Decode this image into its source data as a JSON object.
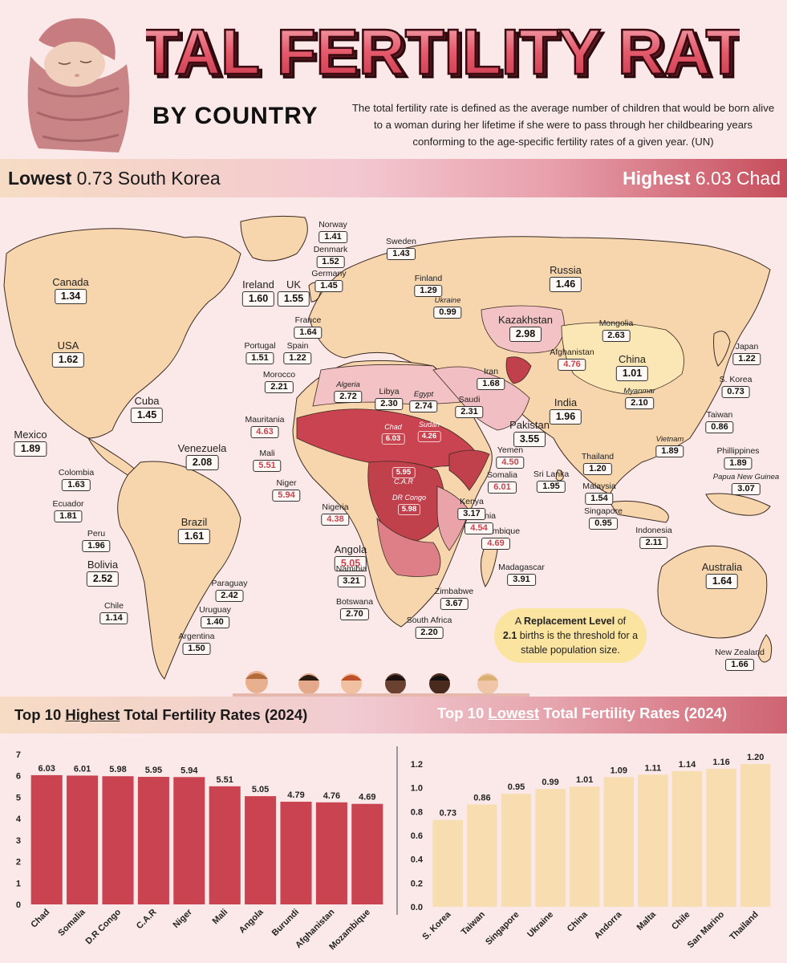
{
  "title": "TOTAL FERTILITY RATES",
  "subtitle": "BY COUNTRY",
  "definition": "The total fertility rate is defined as the average number of children that would be born alive to a woman during her lifetime if she were to pass through her childbearing years conforming to the age-specific fertility rates of a given year. (UN)",
  "lowest": {
    "label": "Lowest",
    "value": "0.73",
    "country": "South Korea"
  },
  "highest": {
    "label": "Highest",
    "value": "6.03",
    "country": "Chad"
  },
  "map_labels": [
    {
      "name": "Canada",
      "value": "1.34"
    },
    {
      "name": "USA",
      "value": "1.62"
    },
    {
      "name": "Mexico",
      "value": "1.89"
    },
    {
      "name": "Cuba",
      "value": "1.45"
    },
    {
      "name": "Venezuela",
      "value": "2.08"
    },
    {
      "name": "Colombia",
      "value": "1.63"
    },
    {
      "name": "Ecuador",
      "value": "1.81"
    },
    {
      "name": "Peru",
      "value": "1.96"
    },
    {
      "name": "Bolivia",
      "value": "2.52"
    },
    {
      "name": "Brazil",
      "value": "1.61"
    },
    {
      "name": "Paraguay",
      "value": "2.42"
    },
    {
      "name": "Uruguay",
      "value": "1.40"
    },
    {
      "name": "Chile",
      "value": "1.14"
    },
    {
      "name": "Argentina",
      "value": "1.50"
    },
    {
      "name": "Norway",
      "value": "1.41"
    },
    {
      "name": "Denmark",
      "value": "1.52"
    },
    {
      "name": "Sweden",
      "value": "1.43"
    },
    {
      "name": "Germany",
      "value": "1.45"
    },
    {
      "name": "Ireland",
      "value": "1.60"
    },
    {
      "name": "UK",
      "value": "1.55"
    },
    {
      "name": "Finland",
      "value": "1.29"
    },
    {
      "name": "Ukraine",
      "value": "0.99"
    },
    {
      "name": "France",
      "value": "1.64"
    },
    {
      "name": "Portugal",
      "value": "1.51"
    },
    {
      "name": "Spain",
      "value": "1.22"
    },
    {
      "name": "Morocco",
      "value": "2.21"
    },
    {
      "name": "Algeria",
      "value": "2.72"
    },
    {
      "name": "Libya",
      "value": "2.30"
    },
    {
      "name": "Egypt",
      "value": "2.74"
    },
    {
      "name": "Mauritania",
      "value": "4.63"
    },
    {
      "name": "Chad",
      "value": "6.03"
    },
    {
      "name": "Sudan",
      "value": "4.26"
    },
    {
      "name": "Mali",
      "value": "5.51"
    },
    {
      "name": "Niger",
      "value": "5.94"
    },
    {
      "name": "Nigeria",
      "value": "4.38"
    },
    {
      "name": "C.A.R",
      "value": "5.95"
    },
    {
      "name": "DR Congo",
      "value": "5.98"
    },
    {
      "name": "Angola",
      "value": "5.05"
    },
    {
      "name": "Namibia",
      "value": "3.21"
    },
    {
      "name": "Botswana",
      "value": "2.70"
    },
    {
      "name": "South Africa",
      "value": "2.20"
    },
    {
      "name": "Zimbabwe",
      "value": "3.67"
    },
    {
      "name": "Mozambique",
      "value": "4.69"
    },
    {
      "name": "Madagascar",
      "value": "3.91"
    },
    {
      "name": "Tanzania",
      "value": "4.54"
    },
    {
      "name": "Kenya",
      "value": "3.17"
    },
    {
      "name": "Somalia",
      "value": "6.01"
    },
    {
      "name": "Yemen",
      "value": "4.50"
    },
    {
      "name": "Saudi",
      "value": "2.31"
    },
    {
      "name": "Iran",
      "value": "1.68"
    },
    {
      "name": "Pakistan",
      "value": "3.55"
    },
    {
      "name": "Afghanistan",
      "value": "4.76"
    },
    {
      "name": "Kazakhstan",
      "value": "2.98"
    },
    {
      "name": "Russia",
      "value": "1.46"
    },
    {
      "name": "Mongolia",
      "value": "2.63"
    },
    {
      "name": "China",
      "value": "1.01"
    },
    {
      "name": "Japan",
      "value": "1.22"
    },
    {
      "name": "S. Korea",
      "value": "0.73"
    },
    {
      "name": "Taiwan",
      "value": "0.86"
    },
    {
      "name": "Myanmar",
      "value": "2.10"
    },
    {
      "name": "India",
      "value": "1.96"
    },
    {
      "name": "Sri Lanka",
      "value": "1.95"
    },
    {
      "name": "Thailand",
      "value": "1.20"
    },
    {
      "name": "Vietnam",
      "value": "1.89"
    },
    {
      "name": "Phillippines",
      "value": "1.89"
    },
    {
      "name": "Papua New Guinea",
      "value": "3.07"
    },
    {
      "name": "Malaysia",
      "value": "1.54"
    },
    {
      "name": "Singapore",
      "value": "0.95"
    },
    {
      "name": "Indonesia",
      "value": "2.11"
    },
    {
      "name": "Australia",
      "value": "1.64"
    },
    {
      "name": "New Zealand",
      "value": "1.66"
    }
  ],
  "replacement": {
    "pre": "A",
    "bold": "Replacement Level",
    "mid": "of",
    "bold2": "2.1",
    "post": "births is the threshold for a stable population size."
  },
  "section_high": {
    "pre": "Top 10",
    "u": "Highest",
    "post": "Total Fertility Rates (2024)"
  },
  "section_low": {
    "pre": "Top 10",
    "u": "Lowest",
    "post": "Total Fertility Rates (2024)"
  },
  "colors": {
    "high_bar": "#c94450",
    "low_bar": "#f8ddb0",
    "background": "#fbe9ea",
    "land": "#f7d6ad",
    "high_region": "#c03545"
  },
  "chart_data": [
    {
      "type": "bar",
      "title": "Top 10 Highest Total Fertility Rates (2024)",
      "categories": [
        "Chad",
        "Somalia",
        "D.R Congo",
        "C.A.R",
        "Niger",
        "Mali",
        "Angola",
        "Burundi",
        "Afghanistan",
        "Mozambique"
      ],
      "values": [
        6.03,
        6.01,
        5.98,
        5.95,
        5.94,
        5.51,
        5.05,
        4.79,
        4.76,
        4.69
      ],
      "ylim": [
        0,
        7
      ],
      "yticks": [
        0,
        1,
        2,
        3,
        4,
        5,
        6,
        7
      ],
      "grid": false
    },
    {
      "type": "bar",
      "title": "Top 10 Lowest Total Fertility Rates (2024)",
      "categories": [
        "S. Korea",
        "Taiwan",
        "Singapore",
        "Ukraine",
        "China",
        "Andorra",
        "Malta",
        "Chile",
        "San Marino",
        "Thailand"
      ],
      "values": [
        0.73,
        0.86,
        0.95,
        0.99,
        1.01,
        1.09,
        1.11,
        1.14,
        1.16,
        1.2
      ],
      "ylim": [
        0,
        1.2
      ],
      "yticks": [
        "0.0",
        "0.2",
        "0.4",
        "0.6",
        "0.8",
        "1.0",
        "1.2"
      ],
      "grid": false
    }
  ]
}
